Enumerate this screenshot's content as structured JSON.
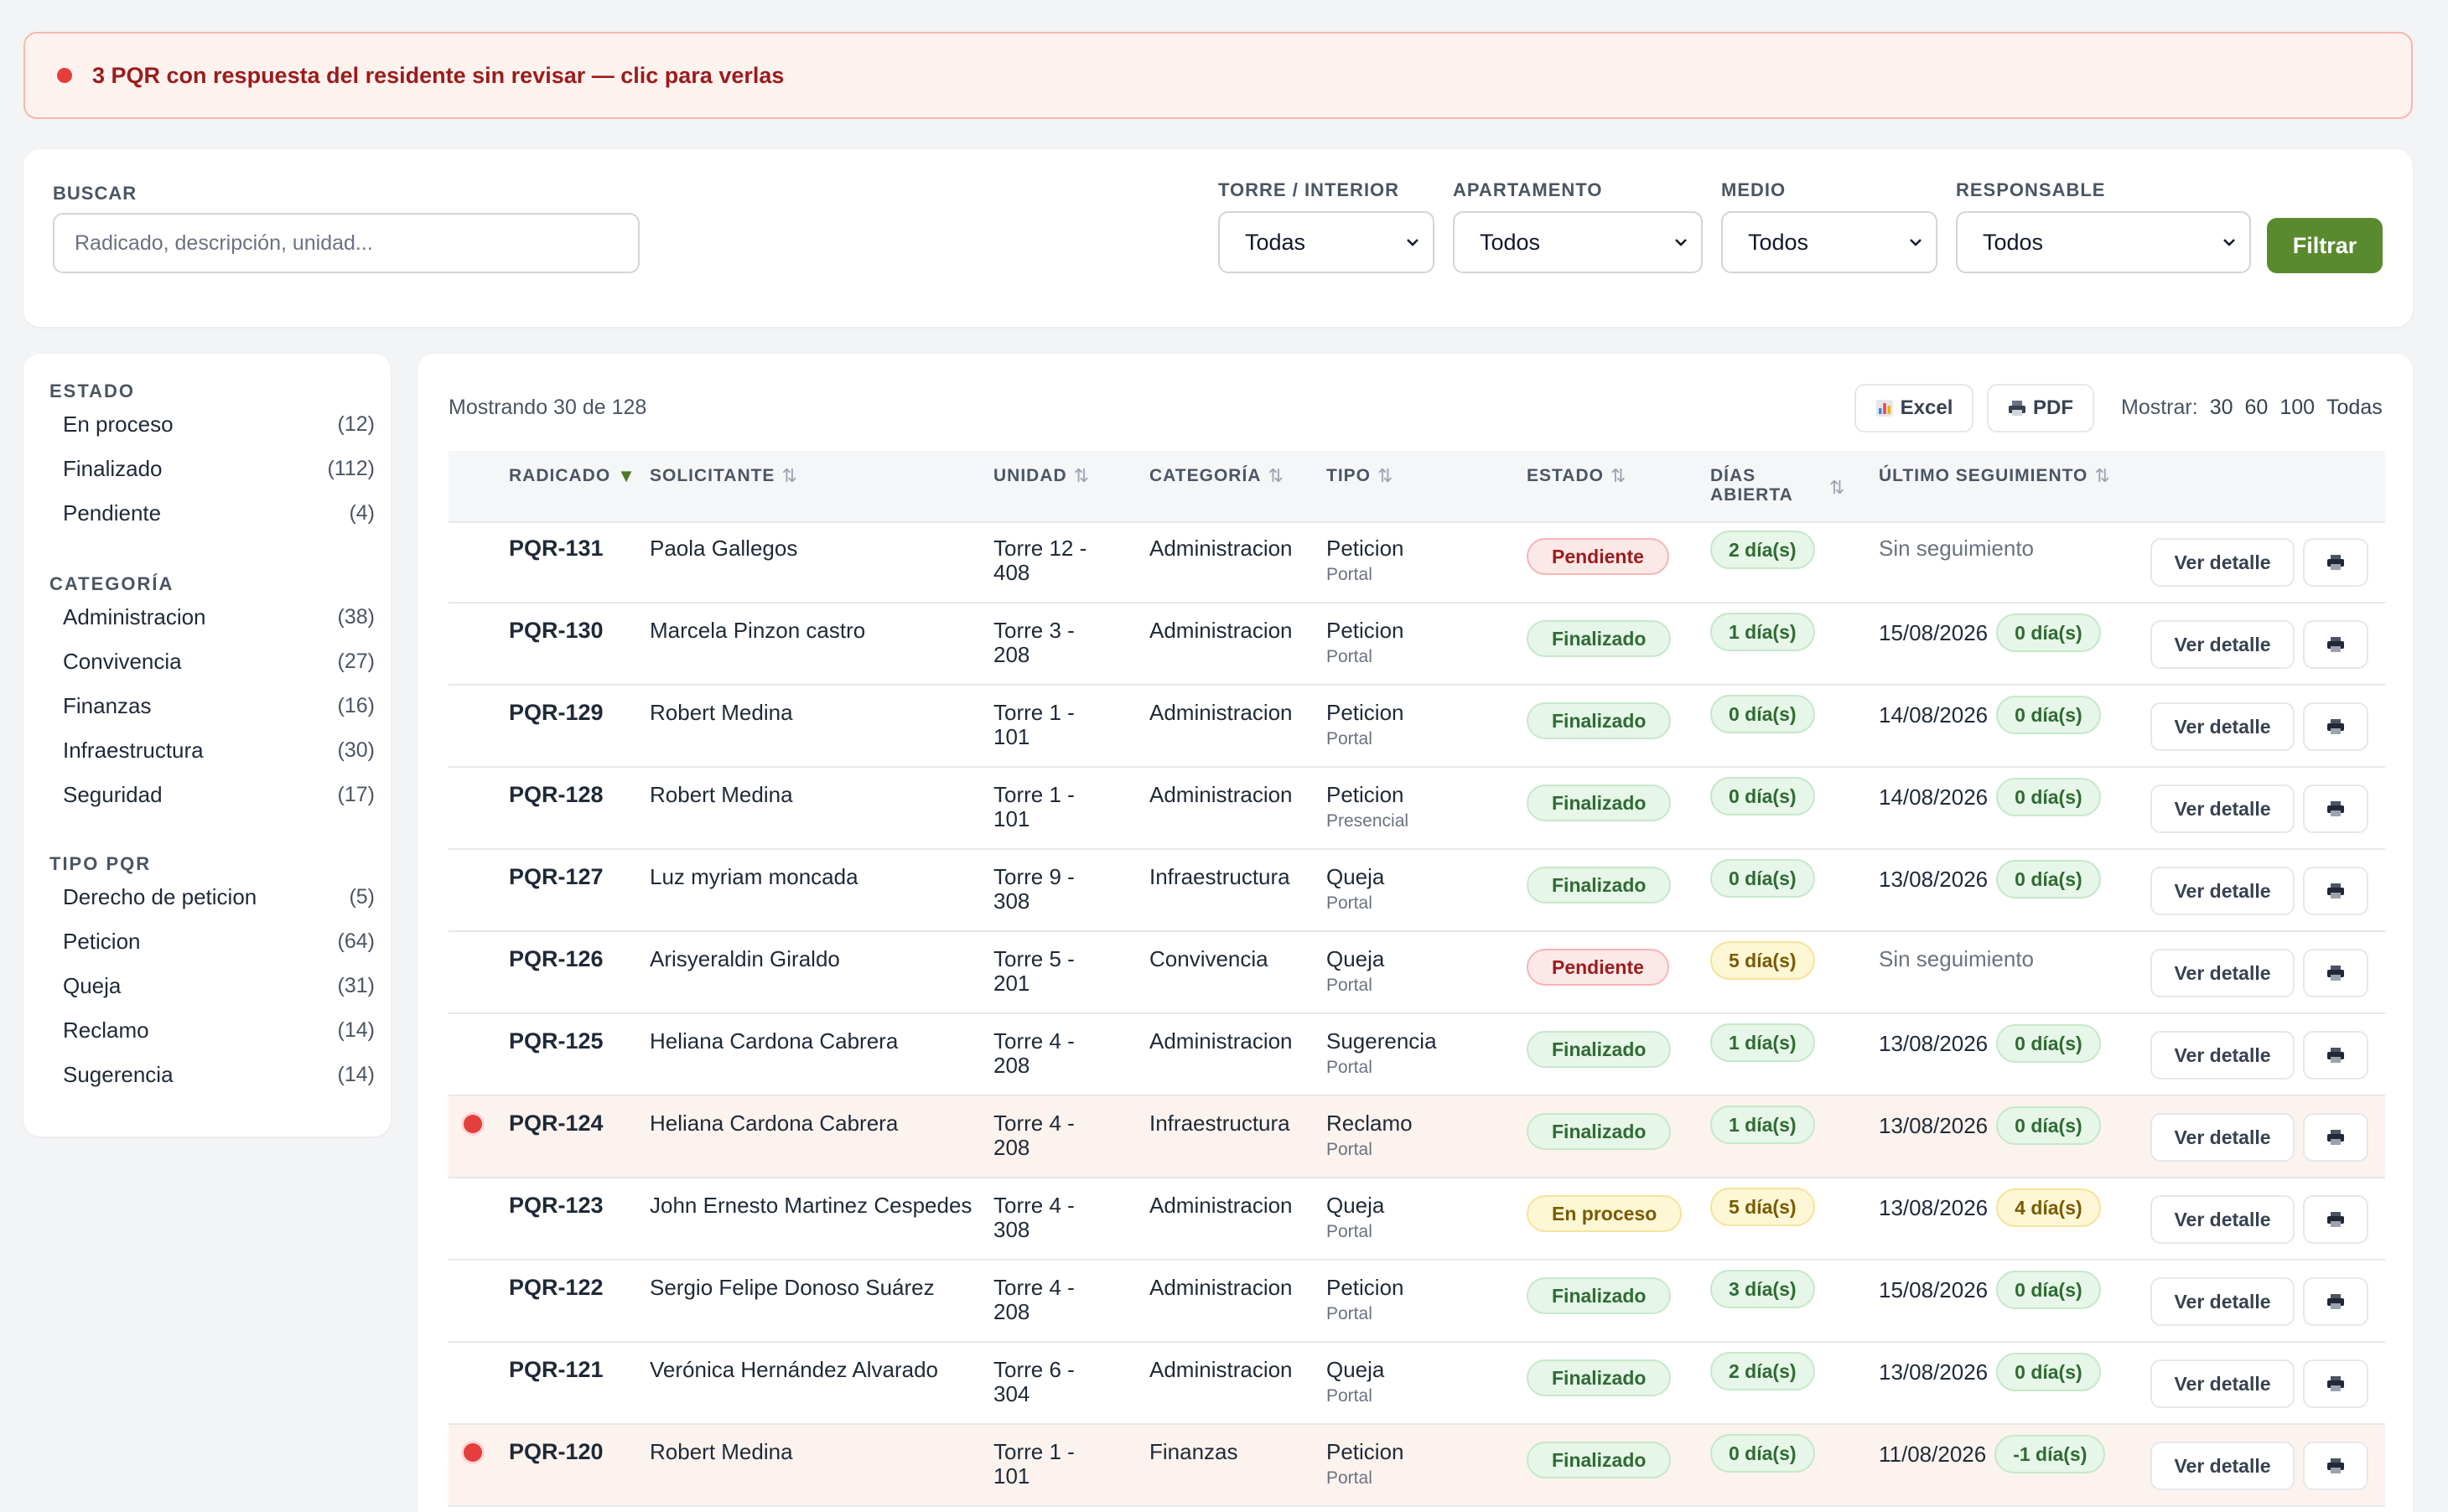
{
  "alert": {
    "text": "3 PQR con respuesta del residente sin revisar — clic para verlas"
  },
  "filters": {
    "buscar_label": "BUSCAR",
    "buscar_placeholder": "Radicado, descripción, unidad...",
    "torre_label": "TORRE / INTERIOR",
    "torre_value": "Todas",
    "apartamento_label": "APARTAMENTO",
    "apartamento_value": "Todos",
    "medio_label": "MEDIO",
    "medio_value": "Todos",
    "responsable_label": "RESPONSABLE",
    "responsable_value": "Todos",
    "filtrar": "Filtrar"
  },
  "sidebar": {
    "estado_title": "ESTADO",
    "estado": [
      {
        "label": "En proceso",
        "count": "(12)"
      },
      {
        "label": "Finalizado",
        "count": "(112)"
      },
      {
        "label": "Pendiente",
        "count": "(4)"
      }
    ],
    "categoria_title": "CATEGORÍA",
    "categoria": [
      {
        "label": "Administracion",
        "count": "(38)"
      },
      {
        "label": "Convivencia",
        "count": "(27)"
      },
      {
        "label": "Finanzas",
        "count": "(16)"
      },
      {
        "label": "Infraestructura",
        "count": "(30)"
      },
      {
        "label": "Seguridad",
        "count": "(17)"
      }
    ],
    "tipo_title": "TIPO PQR",
    "tipo": [
      {
        "label": "Derecho de peticion",
        "count": "(5)"
      },
      {
        "label": "Peticion",
        "count": "(64)"
      },
      {
        "label": "Queja",
        "count": "(31)"
      },
      {
        "label": "Reclamo",
        "count": "(14)"
      },
      {
        "label": "Sugerencia",
        "count": "(14)"
      }
    ]
  },
  "toolbar": {
    "showing": "Mostrando 30 de 128",
    "excel": "Excel",
    "pdf": "PDF",
    "mostrar_label": "Mostrar:",
    "mostrar_opts": [
      "30",
      "60",
      "100",
      "Todas"
    ]
  },
  "table": {
    "headers": {
      "radicado": "RADICADO",
      "solicitante": "SOLICITANTE",
      "unidad": "UNIDAD",
      "categoria": "CATEGORÍA",
      "tipo": "TIPO",
      "estado": "ESTADO",
      "dias1": "DÍAS",
      "dias2": "ABIERTA",
      "seguimiento": "ÚLTIMO SEGUIMIENTO"
    },
    "ver_detalle": "Ver detalle",
    "rows": [
      {
        "rad": "PQR-131",
        "sol": "Paola Gallegos",
        "uni": "Torre 12 - 408",
        "cat": "Administracion",
        "tipo": "Peticion",
        "medio": "Portal",
        "estado": "Pendiente",
        "estado_kind": "red",
        "dias": "2 día(s)",
        "dias_kind": "green",
        "seg": "Sin seguimiento",
        "seg_dias": "",
        "seg_kind": "",
        "unread": false
      },
      {
        "rad": "PQR-130",
        "sol": "Marcela Pinzon castro",
        "uni": "Torre 3 - 208",
        "cat": "Administracion",
        "tipo": "Peticion",
        "medio": "Portal",
        "estado": "Finalizado",
        "estado_kind": "green",
        "dias": "1 día(s)",
        "dias_kind": "green",
        "seg": "15/08/2026",
        "seg_dias": "0 día(s)",
        "seg_kind": "green",
        "unread": false
      },
      {
        "rad": "PQR-129",
        "sol": "Robert Medina",
        "uni": "Torre 1 - 101",
        "cat": "Administracion",
        "tipo": "Peticion",
        "medio": "Portal",
        "estado": "Finalizado",
        "estado_kind": "green",
        "dias": "0 día(s)",
        "dias_kind": "green",
        "seg": "14/08/2026",
        "seg_dias": "0 día(s)",
        "seg_kind": "green",
        "unread": false
      },
      {
        "rad": "PQR-128",
        "sol": "Robert Medina",
        "uni": "Torre 1 - 101",
        "cat": "Administracion",
        "tipo": "Peticion",
        "medio": "Presencial",
        "estado": "Finalizado",
        "estado_kind": "green",
        "dias": "0 día(s)",
        "dias_kind": "green",
        "seg": "14/08/2026",
        "seg_dias": "0 día(s)",
        "seg_kind": "green",
        "unread": false
      },
      {
        "rad": "PQR-127",
        "sol": "Luz myriam moncada",
        "uni": "Torre 9 - 308",
        "cat": "Infraestructura",
        "tipo": "Queja",
        "medio": "Portal",
        "estado": "Finalizado",
        "estado_kind": "green",
        "dias": "0 día(s)",
        "dias_kind": "green",
        "seg": "13/08/2026",
        "seg_dias": "0 día(s)",
        "seg_kind": "green",
        "unread": false
      },
      {
        "rad": "PQR-126",
        "sol": "Arisyeraldin Giraldo",
        "uni": "Torre 5 - 201",
        "cat": "Convivencia",
        "tipo": "Queja",
        "medio": "Portal",
        "estado": "Pendiente",
        "estado_kind": "red",
        "dias": "5 día(s)",
        "dias_kind": "yellow",
        "seg": "Sin seguimiento",
        "seg_dias": "",
        "seg_kind": "",
        "unread": false
      },
      {
        "rad": "PQR-125",
        "sol": "Heliana Cardona Cabrera",
        "uni": "Torre 4 - 208",
        "cat": "Administracion",
        "tipo": "Sugerencia",
        "medio": "Portal",
        "estado": "Finalizado",
        "estado_kind": "green",
        "dias": "1 día(s)",
        "dias_kind": "green",
        "seg": "13/08/2026",
        "seg_dias": "0 día(s)",
        "seg_kind": "green",
        "unread": false
      },
      {
        "rad": "PQR-124",
        "sol": "Heliana Cardona Cabrera",
        "uni": "Torre 4 - 208",
        "cat": "Infraestructura",
        "tipo": "Reclamo",
        "medio": "Portal",
        "estado": "Finalizado",
        "estado_kind": "green",
        "dias": "1 día(s)",
        "dias_kind": "green",
        "seg": "13/08/2026",
        "seg_dias": "0 día(s)",
        "seg_kind": "green",
        "unread": true
      },
      {
        "rad": "PQR-123",
        "sol": "John Ernesto Martinez Cespedes",
        "uni": "Torre 4 - 308",
        "cat": "Administracion",
        "tipo": "Queja",
        "medio": "Portal",
        "estado": "En proceso",
        "estado_kind": "yellow",
        "dias": "5 día(s)",
        "dias_kind": "yellow",
        "seg": "13/08/2026",
        "seg_dias": "4 día(s)",
        "seg_kind": "yellow",
        "unread": false
      },
      {
        "rad": "PQR-122",
        "sol": "Sergio Felipe Donoso Suárez",
        "uni": "Torre 4 - 208",
        "cat": "Administracion",
        "tipo": "Peticion",
        "medio": "Portal",
        "estado": "Finalizado",
        "estado_kind": "green",
        "dias": "3 día(s)",
        "dias_kind": "green",
        "seg": "15/08/2026",
        "seg_dias": "0 día(s)",
        "seg_kind": "green",
        "unread": false
      },
      {
        "rad": "PQR-121",
        "sol": "Verónica Hernández Alvarado",
        "uni": "Torre 6 - 304",
        "cat": "Administracion",
        "tipo": "Queja",
        "medio": "Portal",
        "estado": "Finalizado",
        "estado_kind": "green",
        "dias": "2 día(s)",
        "dias_kind": "green",
        "seg": "13/08/2026",
        "seg_dias": "0 día(s)",
        "seg_kind": "green",
        "unread": false
      },
      {
        "rad": "PQR-120",
        "sol": "Robert Medina",
        "uni": "Torre 1 - 101",
        "cat": "Finanzas",
        "tipo": "Peticion",
        "medio": "Portal",
        "estado": "Finalizado",
        "estado_kind": "green",
        "dias": "0 día(s)",
        "dias_kind": "green",
        "seg": "11/08/2026",
        "seg_dias": "-1 día(s)",
        "seg_kind": "green",
        "unread": true
      }
    ]
  }
}
